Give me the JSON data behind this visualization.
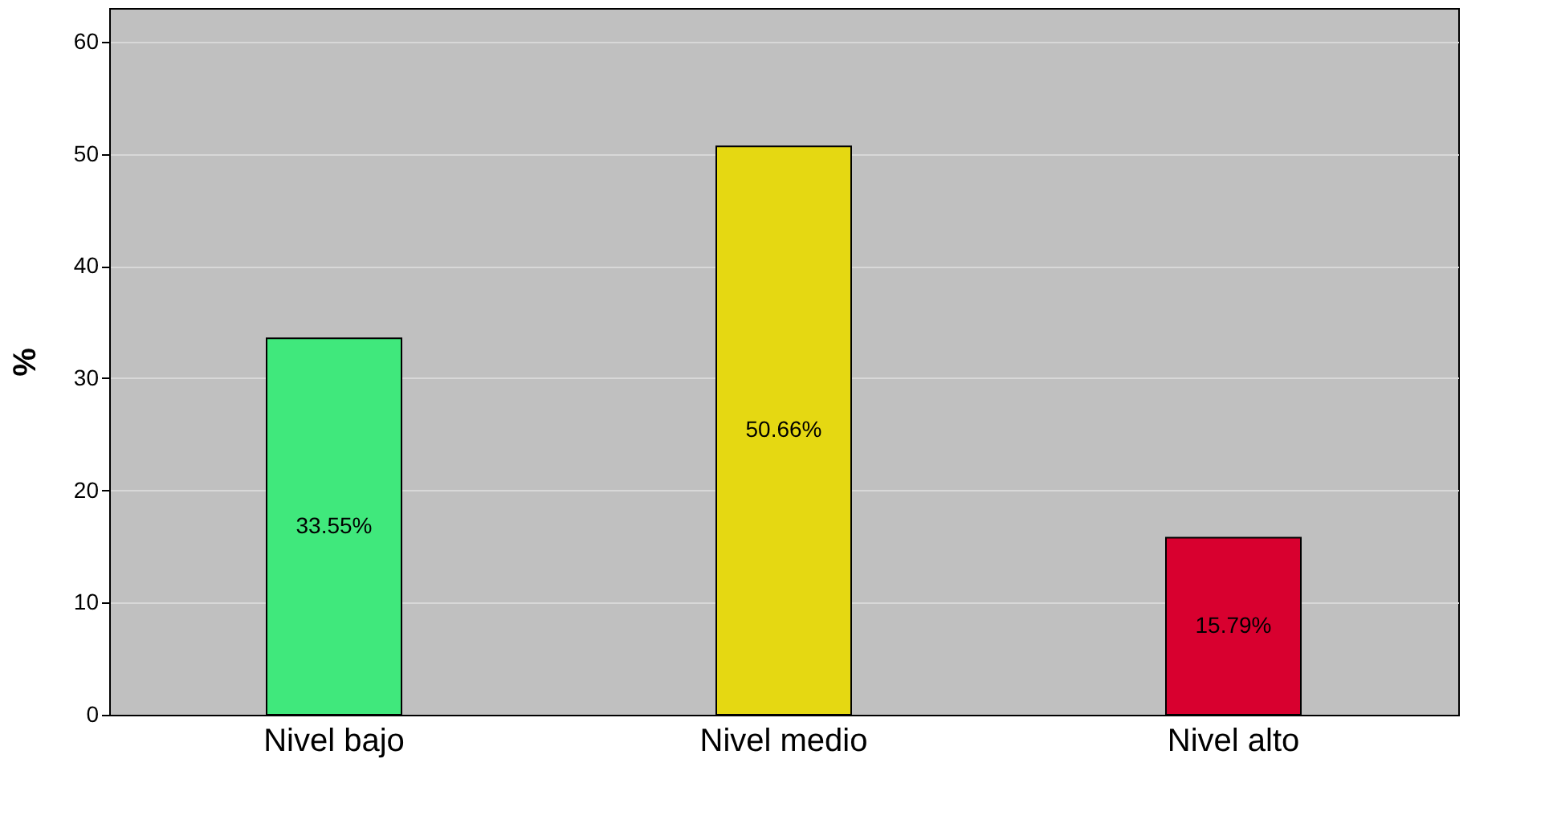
{
  "chart_data": {
    "type": "bar",
    "ylabel": "%",
    "categories": [
      "Nivel bajo",
      "Nivel medio",
      "Nivel alto"
    ],
    "values": [
      33.55,
      50.66,
      15.79
    ],
    "colors": [
      "#40e87c",
      "#e5d812",
      "#d8002f"
    ],
    "value_labels": [
      "33.55%",
      "50.66%",
      "15.79%"
    ],
    "ylim": [
      0,
      63
    ],
    "yticks": [
      0,
      10,
      20,
      30,
      40,
      50,
      60
    ],
    "grid": "y",
    "legend": false
  }
}
